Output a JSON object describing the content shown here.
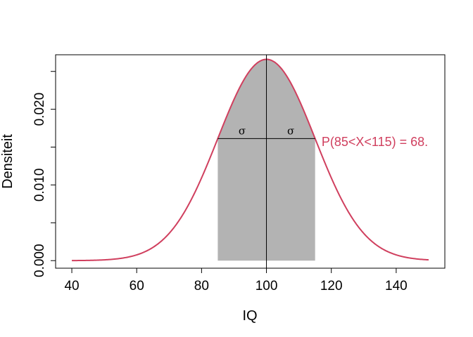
{
  "chart_data": {
    "type": "area",
    "xlabel": "IQ",
    "ylabel": "Densiteit",
    "xlim": [
      35,
      155
    ],
    "ylim": [
      -0.001,
      0.0272
    ],
    "x_ticks": [
      40,
      60,
      80,
      100,
      120,
      140
    ],
    "x_tick_labels": [
      "40",
      "60",
      "80",
      "100",
      "120",
      "140"
    ],
    "y_ticks": [
      0.0,
      0.005,
      0.01,
      0.015,
      0.02,
      0.025
    ],
    "y_tick_labels": [
      "0.000",
      "",
      "0.010",
      "",
      "0.020",
      ""
    ],
    "grid": false,
    "distribution": {
      "mean": 100,
      "sd": 15,
      "x_range": [
        40,
        150
      ]
    },
    "shaded_region": {
      "x_from": 85,
      "x_to": 115
    },
    "mean_line_x": 100,
    "sigma_line": {
      "x_from": 85,
      "x_to": 115
    },
    "sigma_labels": [
      {
        "text": "σ",
        "x": 92.5
      },
      {
        "text": "σ",
        "x": 107.5
      }
    ],
    "annotation": {
      "text": "P(85<X<115) = 68.",
      "x": 117
    },
    "colors": {
      "curve": "#d03f5e",
      "shade": "#b3b3b3",
      "annotation": "#d03f5e"
    }
  }
}
